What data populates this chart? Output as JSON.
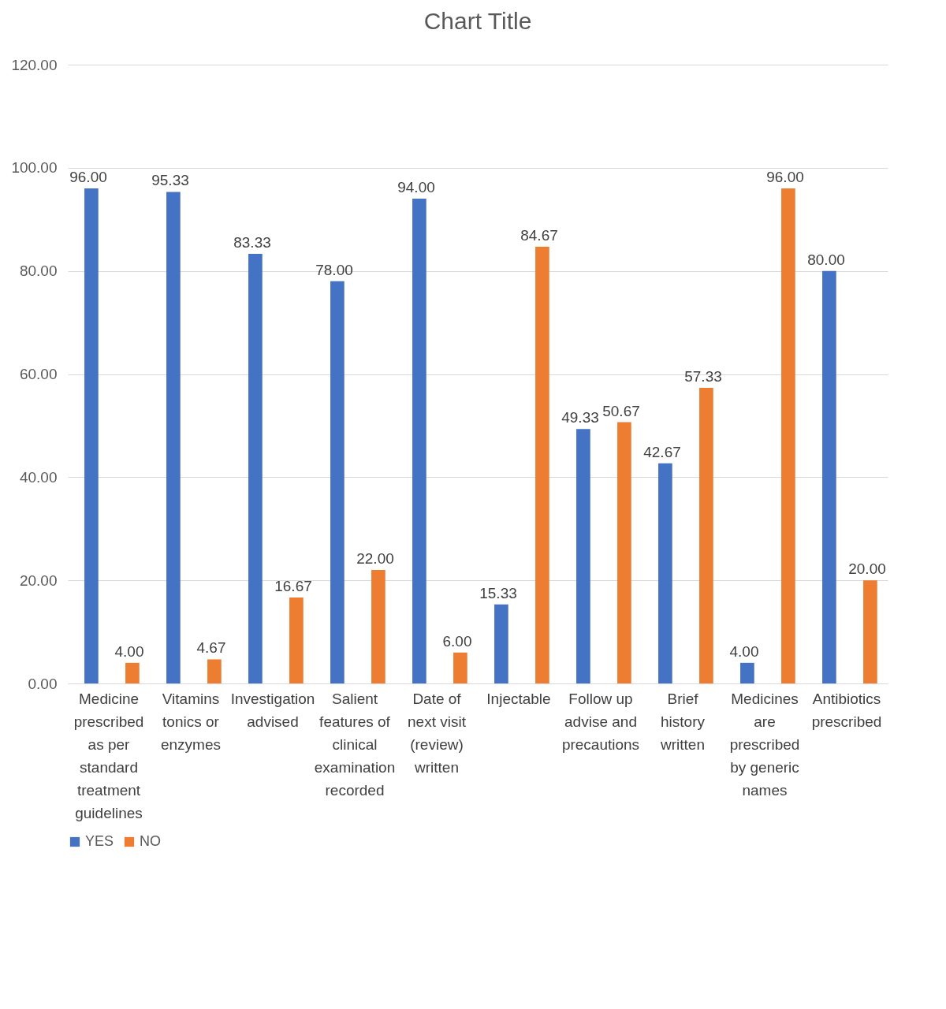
{
  "chart_data": {
    "type": "bar",
    "title": "Chart Title",
    "categories": [
      "Medicine prescribed as per standard treatment guidelines",
      "Vitamins tonics or enzymes",
      "Investigation advised",
      "Salient features of clinical examination recorded",
      "Date of next visit (review) written",
      "Injectable",
      "Follow up advise and precautions",
      "Brief history written",
      "Medicines are prescribed by generic names",
      "Antibiotics prescribed"
    ],
    "series": [
      {
        "name": "YES",
        "color": "#4472c4",
        "values": [
          96.0,
          95.33,
          83.33,
          78.0,
          94.0,
          15.33,
          49.33,
          42.67,
          4.0,
          80.0
        ],
        "value_labels": [
          "96.00",
          "95.33",
          "83.33",
          "78.00",
          "94.00",
          "15.33",
          "49.33",
          "42.67",
          "4.00",
          "80.00"
        ]
      },
      {
        "name": "NO",
        "color": "#ed7d31",
        "values": [
          4.0,
          4.67,
          16.67,
          22.0,
          6.0,
          84.67,
          50.67,
          57.33,
          96.0,
          20.0
        ],
        "value_labels": [
          "4.00",
          "4.67",
          "16.67",
          "22.00",
          "6.00",
          "84.67",
          "50.67",
          "57.33",
          "96.00",
          "20.00"
        ]
      }
    ],
    "ylim": [
      0,
      120
    ],
    "yticks": [
      {
        "value": 0,
        "label": "0.00"
      },
      {
        "value": 20,
        "label": "20.00"
      },
      {
        "value": 40,
        "label": "40.00"
      },
      {
        "value": 60,
        "label": "60.00"
      },
      {
        "value": 80,
        "label": "80.00"
      },
      {
        "value": 100,
        "label": "100.00"
      },
      {
        "value": 120,
        "label": "120.00"
      }
    ],
    "grid": "y",
    "legend": "bottom"
  }
}
